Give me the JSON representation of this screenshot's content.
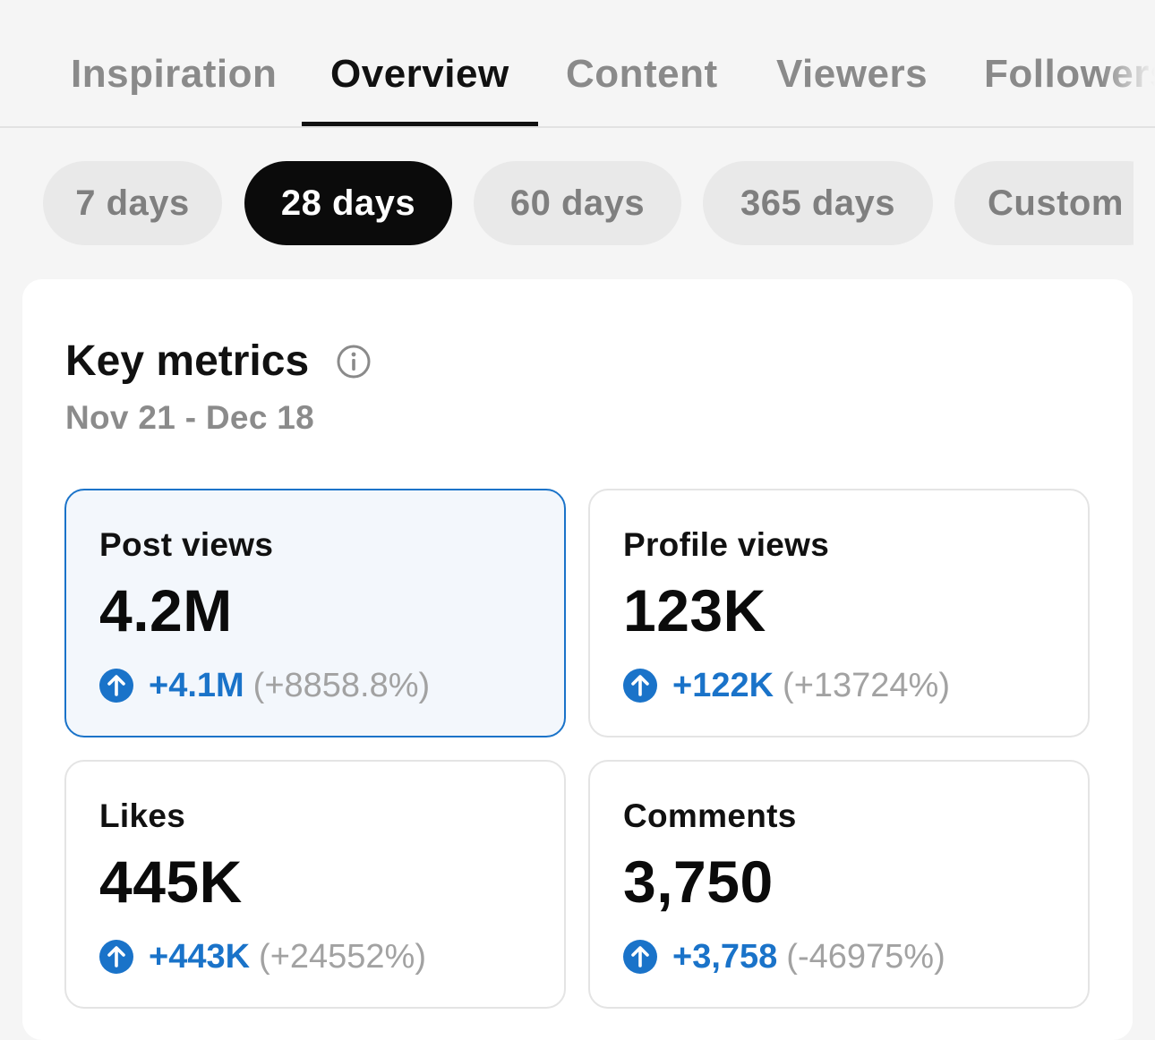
{
  "tabs": [
    {
      "label": "Inspiration"
    },
    {
      "label": "Overview"
    },
    {
      "label": "Content"
    },
    {
      "label": "Viewers"
    },
    {
      "label": "Followers"
    }
  ],
  "active_tab": "Overview",
  "ranges": [
    {
      "label": "7 days"
    },
    {
      "label": "28 days"
    },
    {
      "label": "60 days"
    },
    {
      "label": "365 days"
    },
    {
      "label": "Custom"
    }
  ],
  "active_range": "28 days",
  "key_metrics": {
    "title": "Key metrics",
    "info_icon": "info-icon",
    "date_range": "Nov 21 - Dec 18",
    "items": [
      {
        "label": "Post views",
        "value": "4.2M",
        "change": "+4.1M",
        "change_pct": "(+8858.8%)",
        "icon": "arrow-up-circle-icon"
      },
      {
        "label": "Profile views",
        "value": "123K",
        "change": "+122K",
        "change_pct": "(+13724%)",
        "icon": "arrow-up-circle-icon"
      },
      {
        "label": "Likes",
        "value": "445K",
        "change": "+443K",
        "change_pct": "(+24552%)",
        "icon": "arrow-up-circle-icon"
      },
      {
        "label": "Comments",
        "value": "3,750",
        "change": "+3,758",
        "change_pct": "(-46975%)",
        "icon": "arrow-up-circle-icon"
      }
    ]
  },
  "colors": {
    "accent": "#1a73c9",
    "active_chip": "#0b0b0b",
    "selected_card_bg": "#f3f7fc",
    "muted_text": "#8a8a8a"
  }
}
